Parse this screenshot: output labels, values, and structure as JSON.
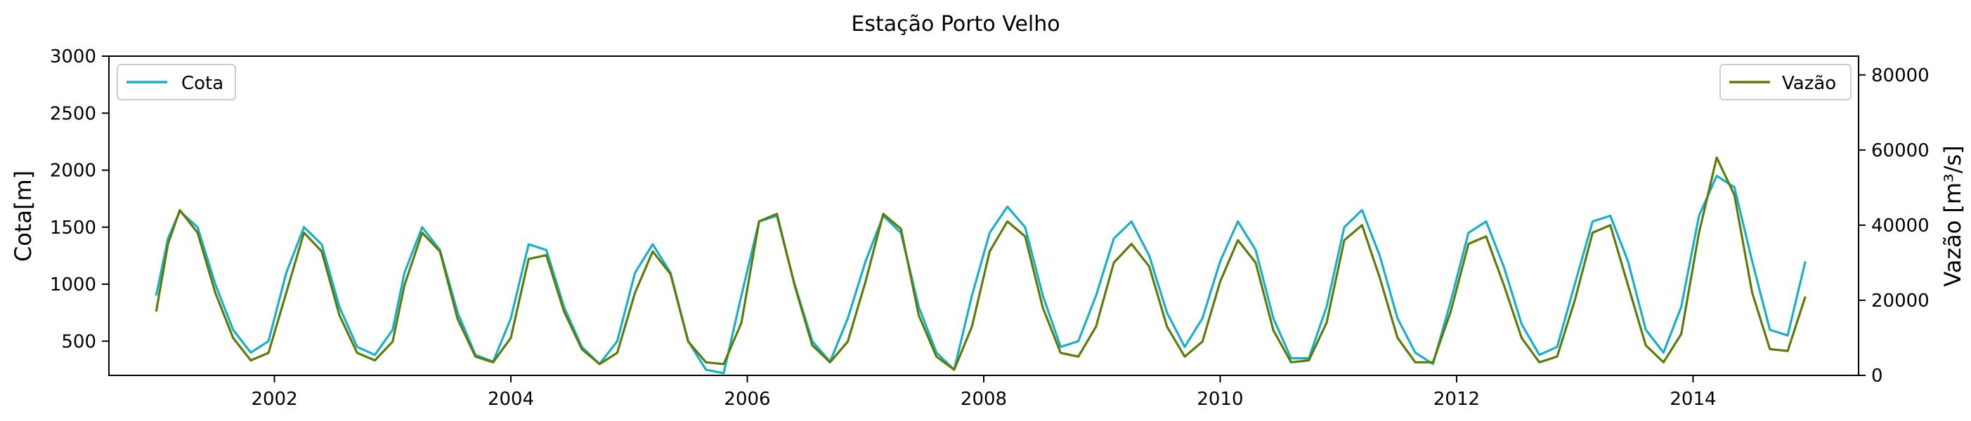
{
  "chart_data": {
    "type": "line",
    "title": "Estação Porto Velho",
    "x_ticks": [
      "2002",
      "2004",
      "2006",
      "2008",
      "2010",
      "2012",
      "2014"
    ],
    "x_range": [
      2000.6,
      2015.4
    ],
    "y_left": {
      "label": "Cota[m]",
      "range": [
        200,
        3000
      ],
      "ticks": [
        500,
        1000,
        1500,
        2000,
        2500,
        3000
      ]
    },
    "y_right": {
      "label": "Vazão [m³/s]",
      "range": [
        0,
        85000
      ],
      "ticks": [
        0,
        20000,
        40000,
        60000,
        80000
      ]
    },
    "grid": false,
    "series": [
      {
        "name": "Cota",
        "axis": "left",
        "color": "#17b0cc",
        "legend_position": "upper-left",
        "x": [
          2001.0,
          2001.1,
          2001.2,
          2001.35,
          2001.5,
          2001.65,
          2001.8,
          2001.95,
          2002.1,
          2002.25,
          2002.4,
          2002.55,
          2002.7,
          2002.85,
          2003.0,
          2003.1,
          2003.25,
          2003.4,
          2003.55,
          2003.7,
          2003.85,
          2004.0,
          2004.15,
          2004.3,
          2004.45,
          2004.6,
          2004.75,
          2004.9,
          2005.05,
          2005.2,
          2005.35,
          2005.5,
          2005.65,
          2005.8,
          2005.95,
          2006.1,
          2006.25,
          2006.4,
          2006.55,
          2006.7,
          2006.85,
          2007.0,
          2007.15,
          2007.3,
          2007.45,
          2007.6,
          2007.75,
          2007.9,
          2008.05,
          2008.2,
          2008.35,
          2008.5,
          2008.65,
          2008.8,
          2008.95,
          2009.1,
          2009.25,
          2009.4,
          2009.55,
          2009.7,
          2009.85,
          2010.0,
          2010.15,
          2010.3,
          2010.45,
          2010.6,
          2010.75,
          2010.9,
          2011.05,
          2011.2,
          2011.35,
          2011.5,
          2011.65,
          2011.8,
          2011.95,
          2012.1,
          2012.25,
          2012.4,
          2012.55,
          2012.7,
          2012.85,
          2013.0,
          2013.15,
          2013.3,
          2013.45,
          2013.6,
          2013.75,
          2013.9,
          2014.05,
          2014.2,
          2014.35,
          2014.5,
          2014.65,
          2014.8,
          2014.95
        ],
        "y": [
          900,
          1400,
          1640,
          1500,
          1000,
          600,
          400,
          500,
          1100,
          1500,
          1350,
          800,
          450,
          380,
          600,
          1100,
          1500,
          1300,
          750,
          380,
          320,
          700,
          1350,
          1300,
          800,
          450,
          300,
          500,
          1100,
          1350,
          1100,
          500,
          250,
          220,
          900,
          1550,
          1600,
          1000,
          500,
          320,
          700,
          1200,
          1600,
          1450,
          800,
          400,
          250,
          900,
          1450,
          1680,
          1500,
          900,
          450,
          500,
          900,
          1400,
          1550,
          1250,
          750,
          450,
          700,
          1200,
          1550,
          1300,
          700,
          350,
          350,
          800,
          1500,
          1650,
          1250,
          700,
          400,
          300,
          850,
          1450,
          1550,
          1150,
          650,
          380,
          450,
          1000,
          1550,
          1600,
          1200,
          600,
          400,
          800,
          1600,
          1950,
          1850,
          1200,
          600,
          550,
          1200
        ]
      },
      {
        "name": "Vazão",
        "axis": "right",
        "color": "#5c7d05",
        "legend_position": "upper-right",
        "x": [
          2001.0,
          2001.1,
          2001.2,
          2001.35,
          2001.5,
          2001.65,
          2001.8,
          2001.95,
          2002.1,
          2002.25,
          2002.4,
          2002.55,
          2002.7,
          2002.85,
          2003.0,
          2003.1,
          2003.25,
          2003.4,
          2003.55,
          2003.7,
          2003.85,
          2004.0,
          2004.15,
          2004.3,
          2004.45,
          2004.6,
          2004.75,
          2004.9,
          2005.05,
          2005.2,
          2005.35,
          2005.5,
          2005.65,
          2005.8,
          2005.95,
          2006.1,
          2006.25,
          2006.4,
          2006.55,
          2006.7,
          2006.85,
          2007.0,
          2007.15,
          2007.3,
          2007.45,
          2007.6,
          2007.75,
          2007.9,
          2008.05,
          2008.2,
          2008.35,
          2008.5,
          2008.65,
          2008.8,
          2008.95,
          2009.1,
          2009.25,
          2009.4,
          2009.55,
          2009.7,
          2009.85,
          2010.0,
          2010.15,
          2010.3,
          2010.45,
          2010.6,
          2010.75,
          2010.9,
          2011.05,
          2011.2,
          2011.35,
          2011.5,
          2011.65,
          2011.8,
          2011.95,
          2012.1,
          2012.25,
          2012.4,
          2012.55,
          2012.7,
          2012.85,
          2013.0,
          2013.15,
          2013.3,
          2013.45,
          2013.6,
          2013.75,
          2013.9,
          2014.05,
          2014.2,
          2014.35,
          2014.5,
          2014.65,
          2014.8,
          2014.95
        ],
        "y": [
          17000,
          35000,
          44000,
          38000,
          22000,
          10000,
          4000,
          6000,
          22000,
          38000,
          33000,
          16000,
          6000,
          4000,
          9000,
          24000,
          38000,
          33000,
          15000,
          5000,
          3500,
          10000,
          31000,
          32000,
          17000,
          7000,
          3000,
          6000,
          22000,
          33000,
          27000,
          9000,
          3500,
          3000,
          14000,
          41000,
          43000,
          24000,
          8000,
          3500,
          9000,
          25000,
          43000,
          39000,
          16000,
          5000,
          1500,
          13000,
          33000,
          41000,
          37000,
          18000,
          6000,
          5000,
          13000,
          30000,
          35000,
          29000,
          13000,
          5000,
          9000,
          25000,
          36000,
          30000,
          12000,
          3500,
          4000,
          14000,
          36000,
          40000,
          26000,
          10000,
          3500,
          3500,
          17000,
          35000,
          37000,
          24000,
          10000,
          3500,
          5000,
          20000,
          38000,
          40000,
          24000,
          8000,
          3500,
          11000,
          38000,
          58000,
          48000,
          22000,
          7000,
          6500,
          21000
        ]
      }
    ]
  }
}
